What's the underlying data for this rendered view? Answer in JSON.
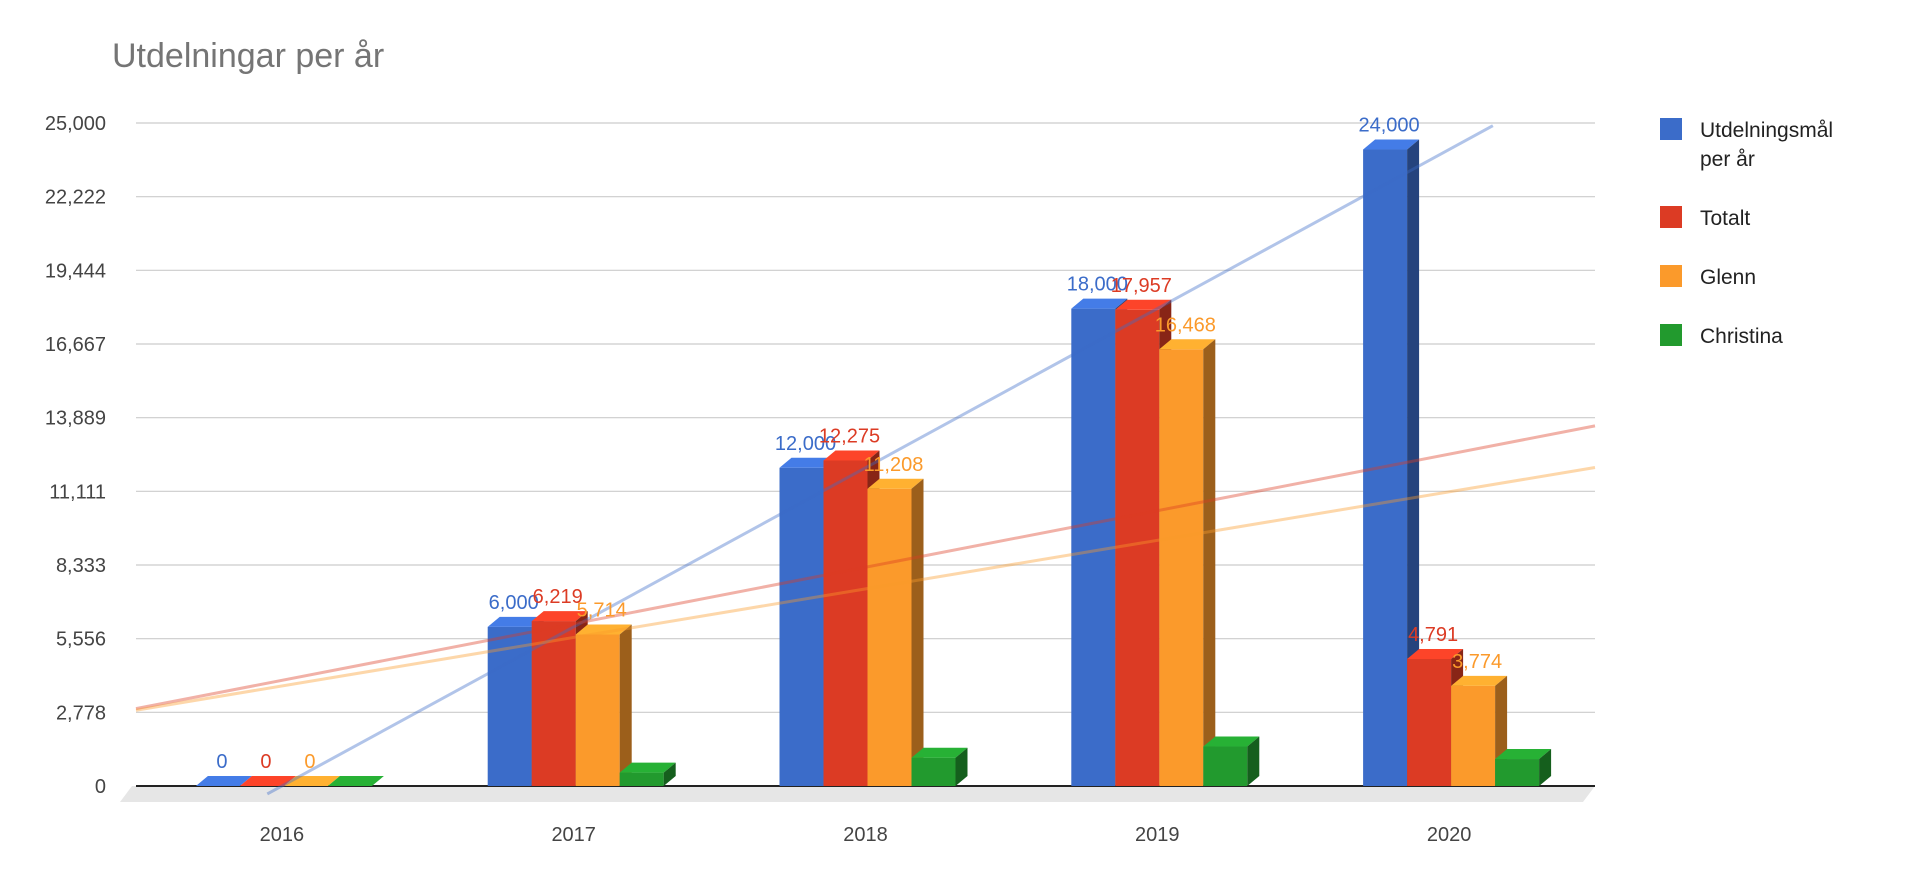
{
  "chart_data": {
    "type": "bar",
    "title": "Utdelningar per år",
    "categories": [
      "2016",
      "2017",
      "2018",
      "2019",
      "2020"
    ],
    "ylim": [
      0,
      25000
    ],
    "yticks": [
      "0",
      "2,778",
      "5,556",
      "8,333",
      "11,111",
      "13,889",
      "16,667",
      "19,444",
      "22,222",
      "25,000"
    ],
    "grid": true,
    "legend_position": "right",
    "series": [
      {
        "name": "Utdelningsmål per år",
        "legend_lines": [
          "Utdelningsmål",
          "per år"
        ],
        "color": "#3b6cc9",
        "values": [
          0,
          6000,
          12000,
          18000,
          24000
        ],
        "labels": [
          "0",
          "6,000",
          "12,000",
          "18,000",
          "24,000"
        ]
      },
      {
        "name": "Totalt",
        "legend_lines": [
          "Totalt"
        ],
        "color": "#dc3b24",
        "values": [
          0,
          6219,
          12275,
          17957,
          4791
        ],
        "labels": [
          "0",
          "6,219",
          "12,275",
          "17,957",
          "4,791"
        ]
      },
      {
        "name": "Glenn",
        "legend_lines": [
          "Glenn"
        ],
        "color": "#fb9a2b",
        "values": [
          0,
          5714,
          11208,
          16468,
          3774
        ],
        "labels": [
          "0",
          "5,714",
          "11,208",
          "16,468",
          "3,774"
        ]
      },
      {
        "name": "Christina",
        "legend_lines": [
          "Christina"
        ],
        "color": "#229a2e",
        "values": [
          0,
          505,
          1067,
          1489,
          1017
        ],
        "labels": [
          "",
          "",
          "",
          "",
          ""
        ]
      }
    ],
    "trendlines": [
      {
        "series": "Utdelningsmål per år",
        "color": "#3b6cc9"
      },
      {
        "series": "Totalt",
        "color": "#dc3b24"
      },
      {
        "series": "Glenn",
        "color": "#fb9a2b"
      }
    ]
  }
}
